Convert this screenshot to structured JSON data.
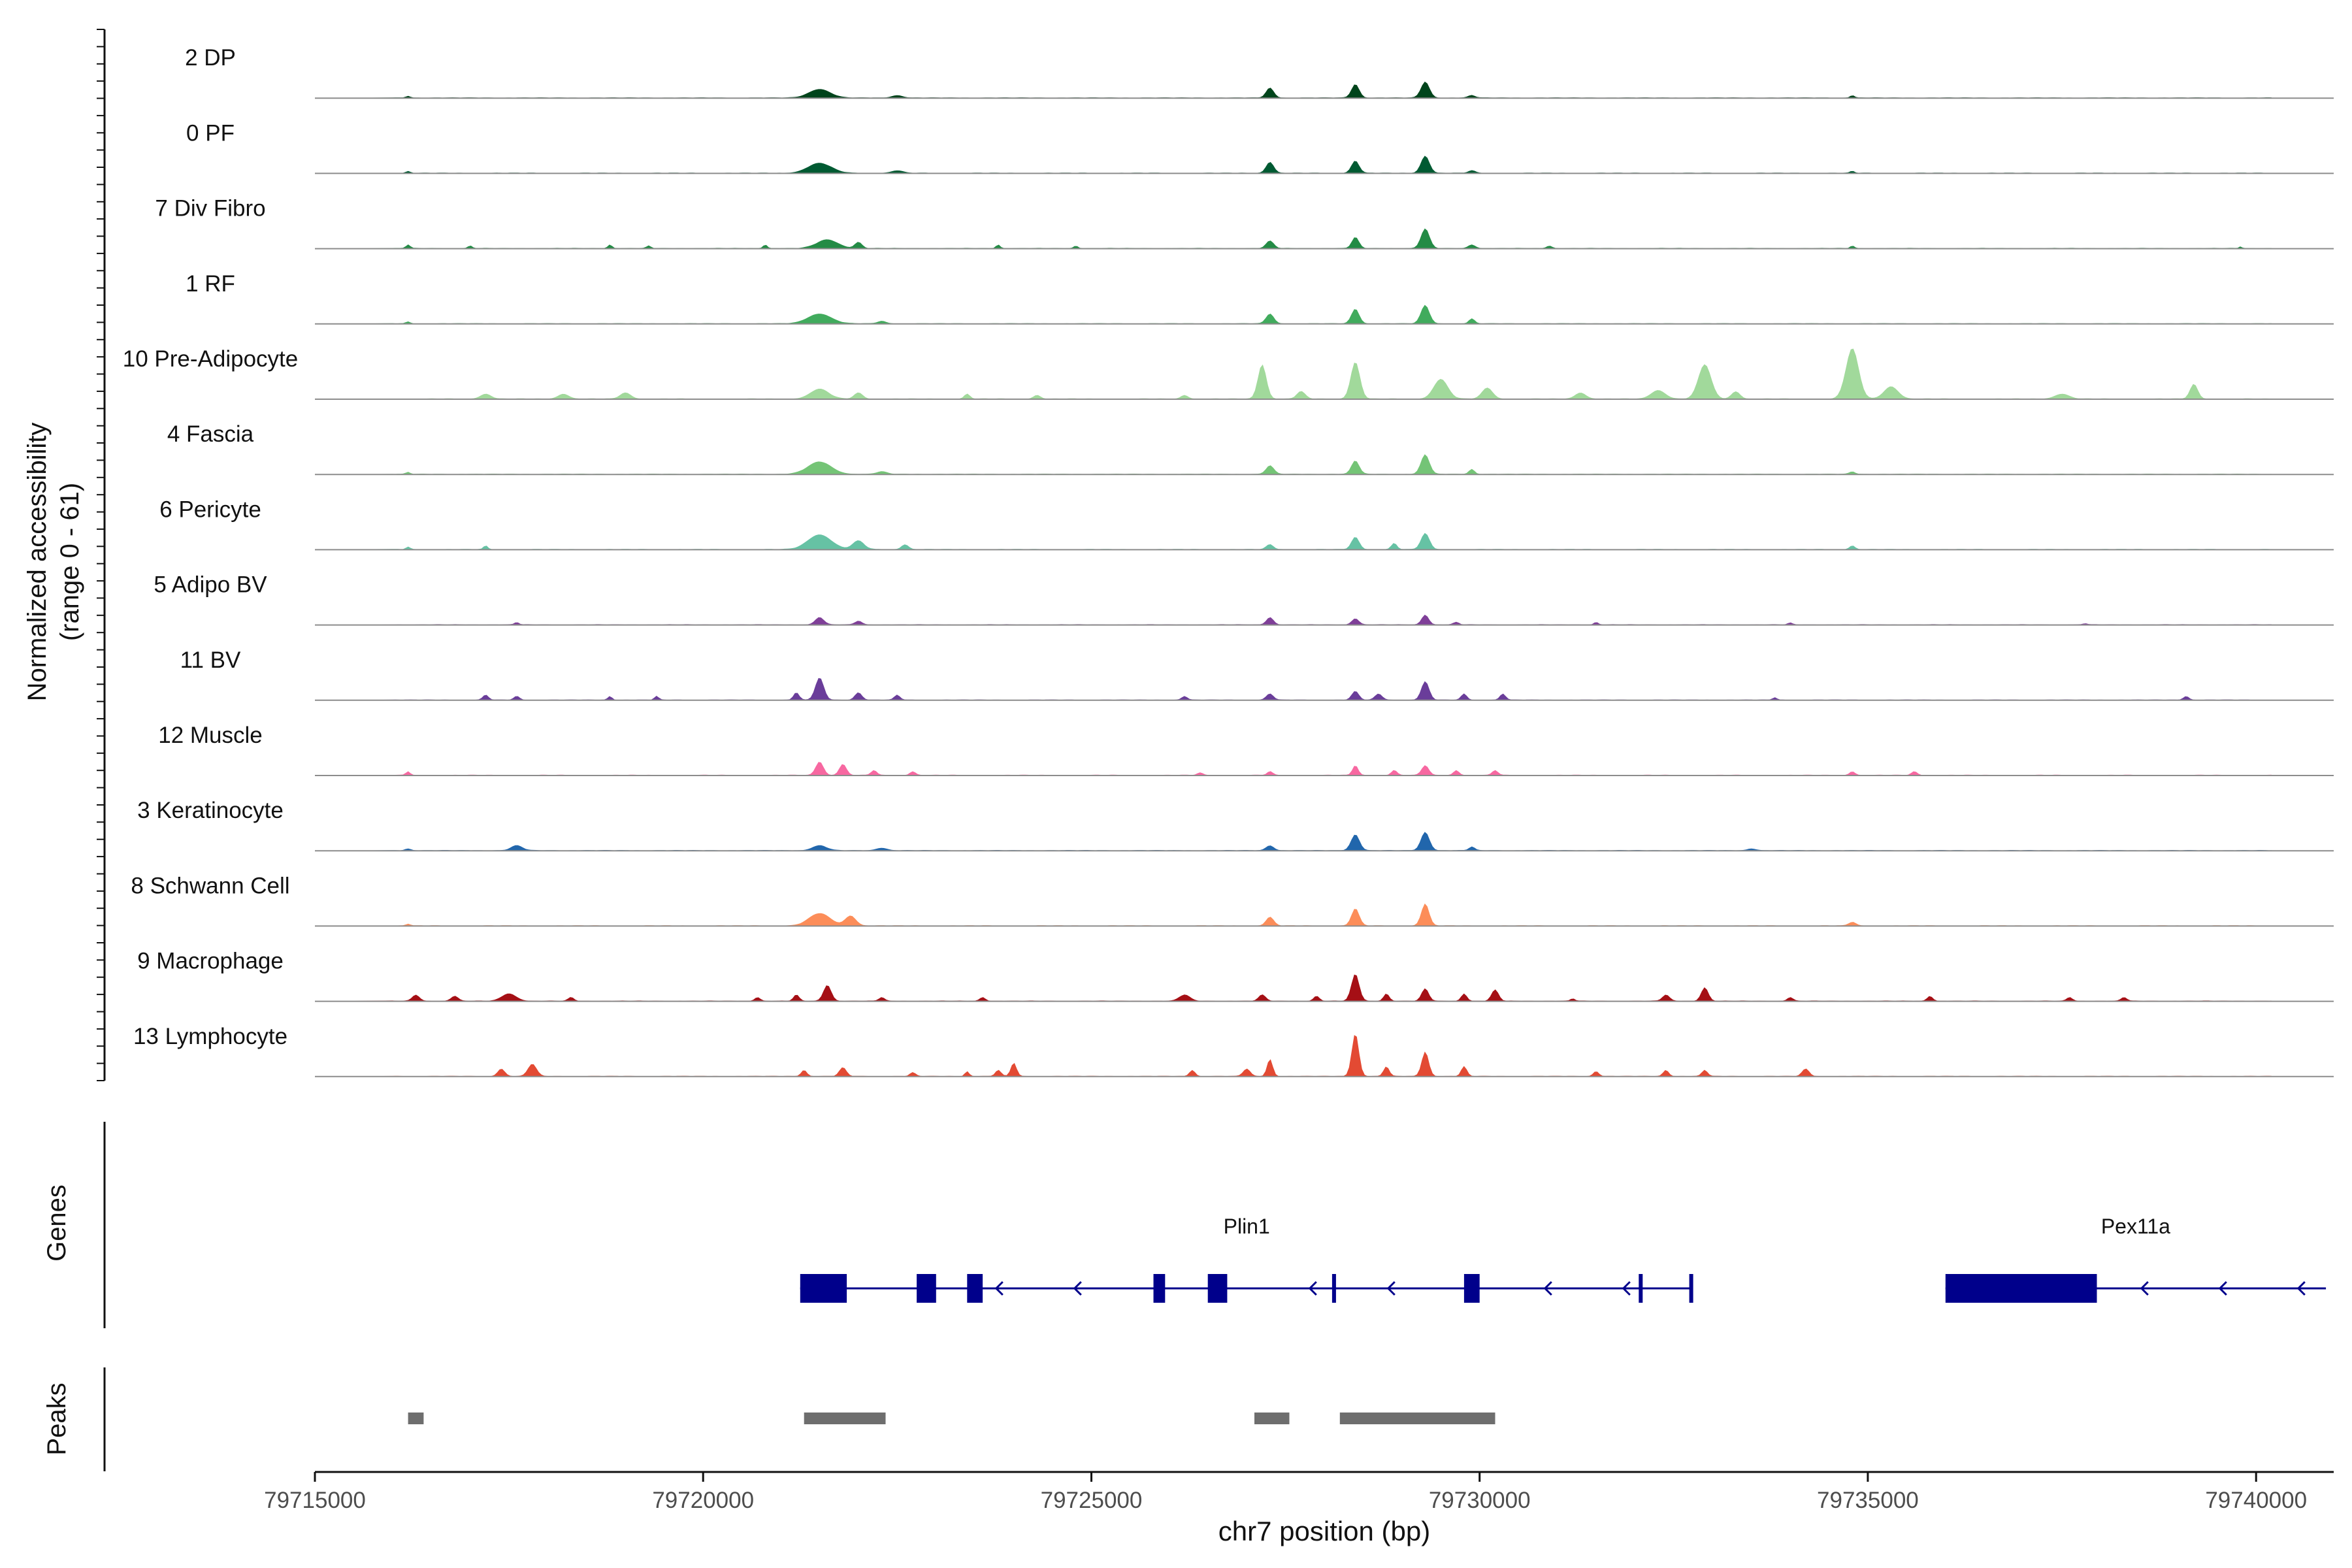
{
  "chart_data": {
    "type": "area",
    "title": "",
    "xlabel": "chr7 position (bp)",
    "ylabel_line1": "Normalized accessibility",
    "ylabel_line2": "(range 0 - 61)",
    "y_range": [
      0,
      61
    ],
    "x_range": [
      79715000,
      79741000
    ],
    "x_ticks": [
      79715000,
      79720000,
      79725000,
      79730000,
      79735000,
      79740000
    ],
    "x_tick_labels": [
      "79715000",
      "79720000",
      "79725000",
      "79730000",
      "79735000",
      "79740000"
    ],
    "panel_labels": {
      "genes": "Genes",
      "peaks": "Peaks"
    },
    "tracks": [
      {
        "name": "2 DP",
        "color": "#00441b",
        "peaks": [
          [
            79716200,
            1.5,
            60
          ],
          [
            79721500,
            7,
            300
          ],
          [
            79722500,
            2,
            150
          ],
          [
            79727300,
            8,
            110
          ],
          [
            79728400,
            11,
            110
          ],
          [
            79729300,
            13,
            120
          ],
          [
            79729900,
            2,
            100
          ],
          [
            79734800,
            2,
            60
          ]
        ]
      },
      {
        "name": "0 PF",
        "color": "#005a32",
        "peaks": [
          [
            79716200,
            1.5,
            60
          ],
          [
            79721500,
            8,
            330
          ],
          [
            79722500,
            2,
            150
          ],
          [
            79727300,
            9,
            110
          ],
          [
            79728400,
            10,
            110
          ],
          [
            79729300,
            14,
            120
          ],
          [
            79729900,
            2,
            100
          ],
          [
            79734800,
            1.5,
            60
          ]
        ]
      },
      {
        "name": "7 Div Fibro",
        "color": "#238b45",
        "peaks": [
          [
            79716200,
            3,
            60
          ],
          [
            79717000,
            2,
            60
          ],
          [
            79718800,
            3,
            60
          ],
          [
            79719300,
            2,
            60
          ],
          [
            79720800,
            3,
            60
          ],
          [
            79721600,
            7,
            300
          ],
          [
            79722000,
            5,
            100
          ],
          [
            79723800,
            3,
            60
          ],
          [
            79724800,
            2,
            60
          ],
          [
            79727300,
            6,
            110
          ],
          [
            79728400,
            9,
            100
          ],
          [
            79729300,
            16,
            120
          ],
          [
            79729900,
            3,
            100
          ],
          [
            79730900,
            2,
            80
          ],
          [
            79734800,
            2,
            60
          ],
          [
            79739800,
            1.5,
            40
          ]
        ]
      },
      {
        "name": "1 RF",
        "color": "#41ab5d",
        "peaks": [
          [
            79716200,
            1.5,
            60
          ],
          [
            79721500,
            8,
            330
          ],
          [
            79722300,
            2,
            120
          ],
          [
            79727300,
            8,
            110
          ],
          [
            79728400,
            12,
            110
          ],
          [
            79729300,
            15,
            120
          ],
          [
            79729900,
            4,
            80
          ]
        ]
      },
      {
        "name": "10 Pre-Adipocyte",
        "color": "#a1d99b",
        "peaks": [
          [
            79717200,
            4,
            150
          ],
          [
            79718200,
            4,
            150
          ],
          [
            79719000,
            5,
            150
          ],
          [
            79721500,
            8,
            260
          ],
          [
            79722000,
            5,
            120
          ],
          [
            79723400,
            4,
            80
          ],
          [
            79724300,
            3,
            100
          ],
          [
            79726200,
            3,
            100
          ],
          [
            79727200,
            28,
            120
          ],
          [
            79727700,
            6,
            120
          ],
          [
            79728400,
            30,
            130
          ],
          [
            79729500,
            16,
            200
          ],
          [
            79730100,
            9,
            150
          ],
          [
            79731300,
            5,
            150
          ],
          [
            79732300,
            7,
            200
          ],
          [
            79732900,
            28,
            180
          ],
          [
            79733300,
            6,
            120
          ],
          [
            79734800,
            41,
            180
          ],
          [
            79735300,
            10,
            200
          ],
          [
            79737500,
            4,
            200
          ],
          [
            79739200,
            12,
            110
          ]
        ]
      },
      {
        "name": "4 Fascia",
        "color": "#74c476",
        "peaks": [
          [
            79716200,
            1.5,
            60
          ],
          [
            79721500,
            10,
            330
          ],
          [
            79722300,
            2,
            150
          ],
          [
            79727300,
            7,
            110
          ],
          [
            79728400,
            11,
            110
          ],
          [
            79729300,
            16,
            120
          ],
          [
            79729900,
            4,
            80
          ],
          [
            79734800,
            2,
            80
          ]
        ]
      },
      {
        "name": "6 Pericyte",
        "color": "#66c2a4",
        "peaks": [
          [
            79716200,
            2,
            60
          ],
          [
            79717200,
            3,
            60
          ],
          [
            79721500,
            12,
            330
          ],
          [
            79722000,
            7,
            160
          ],
          [
            79722600,
            4,
            100
          ],
          [
            79727300,
            4,
            100
          ],
          [
            79728400,
            10,
            110
          ],
          [
            79728900,
            5,
            80
          ],
          [
            79729300,
            13,
            120
          ],
          [
            79734800,
            3,
            80
          ]
        ]
      },
      {
        "name": "5 Adipo BV",
        "color": "#7f3f98",
        "peaks": [
          [
            79717600,
            2,
            60
          ],
          [
            79721500,
            6,
            120
          ],
          [
            79722000,
            3,
            100
          ],
          [
            79727300,
            6,
            100
          ],
          [
            79728400,
            5,
            100
          ],
          [
            79729300,
            8,
            100
          ],
          [
            79729700,
            2,
            80
          ],
          [
            79731500,
            2,
            60
          ],
          [
            79734000,
            1.5,
            60
          ],
          [
            79737800,
            1,
            60
          ]
        ]
      },
      {
        "name": "11 BV",
        "color": "#6a3d9a",
        "peaks": [
          [
            79717200,
            4,
            80
          ],
          [
            79717600,
            3,
            80
          ],
          [
            79718800,
            3,
            60
          ],
          [
            79719400,
            3,
            60
          ],
          [
            79721200,
            6,
            80
          ],
          [
            79721500,
            18,
            120
          ],
          [
            79722000,
            6,
            100
          ],
          [
            79722500,
            4,
            80
          ],
          [
            79726200,
            3,
            80
          ],
          [
            79727300,
            5,
            100
          ],
          [
            79728400,
            7,
            100
          ],
          [
            79728700,
            5,
            100
          ],
          [
            79729300,
            15,
            110
          ],
          [
            79729800,
            5,
            80
          ],
          [
            79730300,
            5,
            80
          ],
          [
            79733800,
            2,
            60
          ],
          [
            79739100,
            3,
            80
          ]
        ]
      },
      {
        "name": "12 Muscle",
        "color": "#f768a1",
        "peaks": [
          [
            79716200,
            3,
            60
          ],
          [
            79721500,
            11,
            110
          ],
          [
            79721800,
            9,
            100
          ],
          [
            79722200,
            4,
            80
          ],
          [
            79722700,
            3,
            80
          ],
          [
            79726400,
            2,
            80
          ],
          [
            79727300,
            3,
            80
          ],
          [
            79728400,
            8,
            80
          ],
          [
            79728900,
            4,
            80
          ],
          [
            79729300,
            8,
            100
          ],
          [
            79729700,
            4,
            80
          ],
          [
            79730200,
            4,
            80
          ],
          [
            79734800,
            3,
            80
          ],
          [
            79735600,
            3,
            80
          ]
        ]
      },
      {
        "name": "3 Keratinocyte",
        "color": "#2166ac",
        "peaks": [
          [
            79716200,
            1.5,
            80
          ],
          [
            79717600,
            4,
            160
          ],
          [
            79721500,
            4,
            200
          ],
          [
            79722300,
            2,
            150
          ],
          [
            79727300,
            4,
            110
          ],
          [
            79728400,
            13,
            120
          ],
          [
            79729300,
            15,
            120
          ],
          [
            79729900,
            3,
            80
          ],
          [
            79733500,
            1.5,
            120
          ]
        ]
      },
      {
        "name": "8 Schwann Cell",
        "color": "#fc8d59",
        "peaks": [
          [
            79716200,
            1.5,
            60
          ],
          [
            79721500,
            10,
            300
          ],
          [
            79721900,
            8,
            150
          ],
          [
            79727300,
            7,
            110
          ],
          [
            79728400,
            14,
            110
          ],
          [
            79729300,
            18,
            110
          ],
          [
            79734800,
            3,
            100
          ]
        ]
      },
      {
        "name": "9 Macrophage",
        "color": "#a50f15",
        "peaks": [
          [
            79716300,
            5,
            100
          ],
          [
            79716800,
            4,
            100
          ],
          [
            79717500,
            6,
            200
          ],
          [
            79718300,
            3,
            80
          ],
          [
            79720700,
            3,
            80
          ],
          [
            79721200,
            5,
            80
          ],
          [
            79721600,
            13,
            110
          ],
          [
            79722300,
            3,
            80
          ],
          [
            79723600,
            3,
            80
          ],
          [
            79726200,
            5,
            150
          ],
          [
            79727200,
            5,
            100
          ],
          [
            79727900,
            4,
            80
          ],
          [
            79728400,
            22,
            110
          ],
          [
            79728800,
            6,
            80
          ],
          [
            79729300,
            10,
            100
          ],
          [
            79729800,
            6,
            80
          ],
          [
            79730200,
            9,
            100
          ],
          [
            79731200,
            2,
            60
          ],
          [
            79732400,
            5,
            100
          ],
          [
            79732900,
            11,
            100
          ],
          [
            79734000,
            3,
            80
          ],
          [
            79735800,
            4,
            80
          ],
          [
            79737600,
            3,
            80
          ],
          [
            79738300,
            3,
            80
          ]
        ]
      },
      {
        "name": "13 Lymphocyte",
        "color": "#e34a33",
        "peaks": [
          [
            79717400,
            6,
            100
          ],
          [
            79717800,
            10,
            120
          ],
          [
            79721300,
            5,
            80
          ],
          [
            79721800,
            7,
            100
          ],
          [
            79722700,
            3,
            80
          ],
          [
            79723400,
            4,
            60
          ],
          [
            79723800,
            5,
            80
          ],
          [
            79724000,
            11,
            80
          ],
          [
            79726300,
            5,
            80
          ],
          [
            79727000,
            6,
            100
          ],
          [
            79727300,
            14,
            80
          ],
          [
            79728400,
            35,
            100
          ],
          [
            79728800,
            8,
            80
          ],
          [
            79729300,
            20,
            100
          ],
          [
            79729800,
            8,
            80
          ],
          [
            79731500,
            4,
            80
          ],
          [
            79732400,
            5,
            80
          ],
          [
            79732900,
            5,
            80
          ],
          [
            79734200,
            6,
            100
          ]
        ]
      }
    ],
    "genes": [
      {
        "name": "Plin1",
        "strand": "-",
        "start": 79721250,
        "end": 79732750,
        "exons": [
          [
            79721250,
            79721850
          ],
          [
            79722750,
            79723000
          ],
          [
            79723400,
            79723600
          ],
          [
            79725800,
            79725950
          ],
          [
            79726500,
            79726750
          ],
          [
            79728100,
            79728150
          ],
          [
            79729800,
            79730000
          ],
          [
            79732050,
            79732100
          ],
          [
            79732700,
            79732750
          ]
        ]
      },
      {
        "name": "Pex11a",
        "strand": "-",
        "start": 79736000,
        "end": 79740900,
        "exons": [
          [
            79736000,
            79737950
          ]
        ]
      }
    ],
    "peak_regions": [
      [
        79716200,
        79716400
      ],
      [
        79721300,
        79722350
      ],
      [
        79727100,
        79727550
      ],
      [
        79728200,
        79730200
      ]
    ]
  }
}
